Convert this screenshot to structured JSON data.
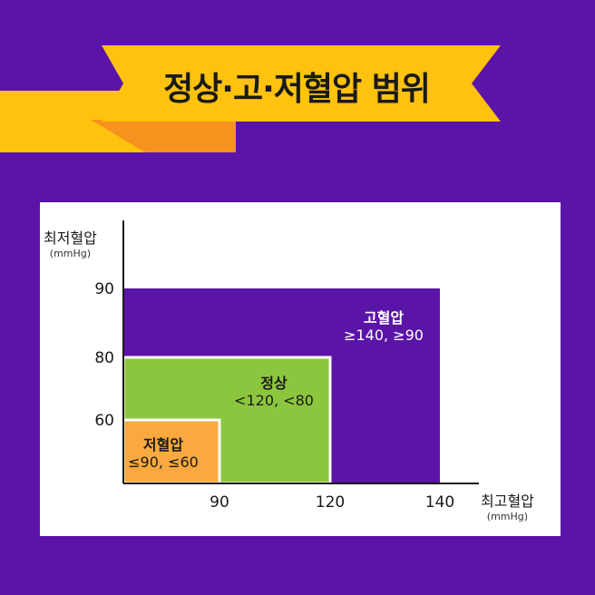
{
  "title": "정상·고·저혈압 범위",
  "colors": {
    "background": "#5b14a8",
    "ribbon": "#ffc20e",
    "ribbon_shadow": "#f7921e",
    "hypertension": "#5b14a8",
    "normal": "#8cc63f",
    "hypotension": "#f9a93f",
    "card": "#ffffff"
  },
  "chart_data": {
    "type": "area",
    "xlabel": "최고혈압",
    "xunit": "(mmHg)",
    "ylabel": "최저혈압",
    "yunit": "(mmHg)",
    "x_ticks": [
      90,
      120,
      140
    ],
    "y_ticks": [
      60,
      80,
      90
    ],
    "regions": [
      {
        "name": "고혈압",
        "condition": "≥140, ≥90",
        "x_max": 140,
        "y_max": 90,
        "color": "#5b14a8",
        "text_color": "#ffffff"
      },
      {
        "name": "정상",
        "condition": "<120, <80",
        "x_max": 120,
        "y_max": 80,
        "color": "#8cc63f",
        "text_color": "#1a1a1a"
      },
      {
        "name": "저혈압",
        "condition": "≤90, ≤60",
        "x_max": 90,
        "y_max": 60,
        "color": "#f9a93f",
        "text_color": "#1a1a1a"
      }
    ]
  }
}
